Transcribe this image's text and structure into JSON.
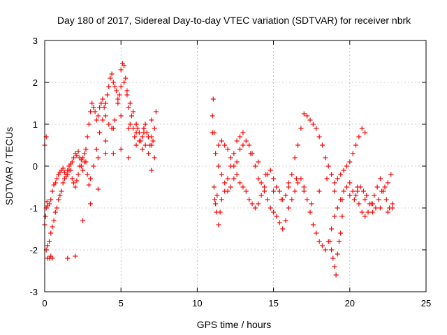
{
  "chart_data": {
    "type": "scatter",
    "title": "Day 180 of 2017, Sidereal Day-to-day VTEC variation (SDTVAR) for receiver nbrk",
    "xlabel": "GPS time / hours",
    "ylabel": "SDTVAR / TECUs",
    "xlim": [
      0,
      25
    ],
    "ylim": [
      -3,
      3
    ],
    "xticks": [
      "0",
      "5",
      "10",
      "15",
      "20",
      "25"
    ],
    "yticks": [
      "-3",
      "-2",
      "-1",
      "0",
      "1",
      "2",
      "3"
    ],
    "grid": true,
    "marker": "+",
    "series": [
      {
        "name": "SDTVAR",
        "color": "#ff0000",
        "x": [
          0.0,
          0.05,
          0.1,
          0.15,
          0.2,
          0.3,
          0.4,
          0.5,
          0.6,
          0.7,
          0.8,
          0.9,
          1.0,
          1.1,
          1.2,
          1.3,
          1.4,
          1.5,
          1.6,
          1.7,
          1.8,
          1.9,
          2.0,
          2.1,
          2.2,
          2.3,
          2.4,
          2.5,
          2.6,
          2.7,
          2.8,
          2.9,
          3.0,
          3.1,
          3.2,
          3.3,
          3.4,
          3.5,
          3.6,
          3.7,
          3.8,
          3.9,
          4.0,
          4.1,
          4.2,
          4.3,
          4.4,
          4.5,
          4.6,
          4.7,
          4.8,
          4.9,
          5.0,
          5.1,
          5.2,
          5.3,
          5.4,
          5.5,
          5.6,
          5.7,
          5.8,
          5.9,
          6.0,
          6.1,
          6.2,
          6.3,
          6.4,
          6.5,
          6.6,
          6.7,
          6.8,
          6.9,
          7.0,
          7.1,
          7.2,
          7.3,
          0.1,
          0.2,
          0.3,
          0.4,
          0.5,
          0.6,
          0.7,
          0.8,
          0.9,
          1.0,
          1.1,
          1.2,
          1.3,
          1.4,
          1.5,
          1.6,
          1.7,
          1.8,
          1.9,
          2.0,
          2.1,
          2.2,
          2.3,
          2.4,
          2.5,
          2.6,
          2.7,
          2.8,
          2.9,
          3.0,
          3.2,
          3.4,
          3.6,
          3.8,
          4.0,
          4.2,
          4.4,
          4.6,
          4.8,
          5.0,
          5.2,
          5.4,
          5.6,
          5.8,
          6.0,
          6.2,
          6.4,
          6.6,
          6.8,
          7.0,
          7.2,
          0.0,
          0.1,
          0.2,
          0.3,
          0.4,
          0.5,
          1.5,
          2.0,
          2.5,
          3.0,
          3.5,
          4.0,
          4.5,
          5.0,
          5.5,
          6.0,
          6.5,
          7.0,
          3.5,
          4.0,
          4.5,
          5.0,
          5.5,
          6.0,
          6.5,
          7.0,
          11.0,
          11.0,
          11.05,
          11.1,
          11.1,
          11.15,
          11.2,
          11.25,
          11.3,
          11.4,
          11.5,
          11.6,
          11.8,
          12.0,
          12.2,
          12.4,
          12.6,
          12.8,
          13.0,
          13.2,
          13.4,
          13.6,
          13.8,
          14.0,
          14.2,
          14.4,
          14.6,
          14.8,
          15.0,
          15.2,
          15.4,
          15.6,
          15.8,
          16.0,
          16.2,
          16.4,
          16.6,
          16.8,
          17.0,
          17.2,
          17.4,
          17.6,
          17.8,
          18.0,
          18.2,
          18.4,
          18.6,
          18.8,
          19.0,
          19.2,
          19.4,
          19.6,
          19.8,
          20.0,
          20.2,
          20.4,
          20.6,
          20.8,
          21.0,
          21.2,
          21.4,
          21.6,
          21.8,
          22.0,
          22.2,
          22.4,
          22.6,
          22.8,
          11.2,
          11.4,
          11.6,
          11.8,
          12.0,
          12.2,
          12.4,
          12.6,
          12.8,
          13.0,
          13.2,
          13.4,
          13.6,
          13.8,
          14.0,
          14.2,
          14.4,
          14.6,
          14.8,
          15.0,
          15.2,
          15.4,
          15.6,
          15.8,
          16.0,
          16.2,
          16.4,
          16.6,
          16.8,
          17.0,
          17.2,
          17.4,
          17.6,
          17.8,
          18.0,
          18.2,
          18.4,
          18.6,
          18.8,
          19.0,
          19.2,
          19.4,
          19.6,
          19.8,
          20.0,
          20.2,
          20.4,
          20.6,
          20.8,
          21.0,
          11.4,
          11.6,
          11.8,
          12.0,
          12.2,
          12.4,
          12.6,
          12.8,
          13.0,
          13.5,
          14.0,
          14.5,
          15.0,
          15.5,
          16.0,
          16.5,
          17.0,
          17.5,
          18.0,
          18.5,
          19.0,
          19.5,
          20.0,
          20.5,
          21.0,
          21.5,
          22.0,
          22.5,
          22.8,
          18.7,
          18.8,
          18.9,
          19.0,
          19.1,
          19.2,
          19.3,
          19.4,
          19.5,
          20.3,
          20.5,
          20.7,
          20.9,
          21.1,
          21.3,
          21.5,
          21.7,
          21.9,
          22.1,
          22.3,
          22.5,
          22.7
        ],
        "y": [
          -1.4,
          -1.2,
          -1.0,
          -0.85,
          -0.95,
          -0.9,
          -0.8,
          -0.6,
          -0.45,
          -0.4,
          -0.3,
          -0.2,
          -0.15,
          -0.1,
          -0.05,
          -0.15,
          -0.25,
          -0.2,
          -0.1,
          0.05,
          0.1,
          0.2,
          0.3,
          0.25,
          0.35,
          0.2,
          0.0,
          -0.1,
          0.1,
          0.4,
          0.7,
          1.0,
          1.3,
          1.5,
          1.4,
          1.3,
          1.1,
          1.2,
          1.4,
          1.5,
          1.6,
          1.4,
          1.5,
          1.7,
          1.9,
          2.1,
          2.2,
          2.0,
          1.9,
          1.8,
          1.6,
          1.7,
          2.3,
          2.45,
          2.4,
          2.1,
          1.8,
          1.4,
          1.0,
          1.2,
          0.9,
          0.7,
          0.8,
          0.9,
          0.8,
          0.6,
          0.7,
          0.9,
          1.0,
          0.8,
          0.7,
          0.5,
          0.7,
          0.6,
          0.9,
          1.3,
          -2.0,
          -1.9,
          -1.8,
          -1.6,
          -1.45,
          -1.3,
          -1.1,
          -1.0,
          -0.8,
          -0.7,
          -0.6,
          -0.4,
          -0.3,
          -0.2,
          -0.1,
          0.0,
          -0.1,
          -0.3,
          -0.4,
          -0.5,
          -0.35,
          -0.2,
          0.0,
          0.15,
          0.2,
          0.3,
          0.1,
          -0.2,
          -0.45,
          -0.3,
          0.0,
          0.4,
          0.8,
          1.1,
          1.2,
          1.0,
          0.9,
          1.1,
          1.5,
          1.9,
          2.0,
          1.7,
          1.5,
          1.3,
          1.0,
          0.6,
          0.4,
          0.5,
          0.3,
          -0.1,
          0.2,
          0.5,
          0.7,
          -2.2,
          -2.2,
          -2.15,
          -2.2,
          -2.2,
          -2.15,
          -1.3,
          -0.9,
          -0.55,
          0.3,
          0.9,
          1.2,
          0.9,
          1.0,
          0.8,
          0.5,
          0.2,
          0.6,
          0.3,
          0.4,
          0.2,
          0.5,
          0.9,
          1.1,
          0.8,
          1.2,
          1.6,
          0.8,
          -0.5,
          -0.8,
          -0.9,
          -1.1,
          -0.7,
          -1.4,
          -1.1,
          -0.8,
          -0.6,
          -0.3,
          0.0,
          0.3,
          0.6,
          0.7,
          0.8,
          0.6,
          0.5,
          0.3,
          0.0,
          -0.3,
          -0.4,
          -0.6,
          -0.8,
          -1.0,
          -1.1,
          -1.2,
          -1.35,
          -1.5,
          -1.3,
          -1.0,
          -0.8,
          -0.6,
          -0.4,
          -0.3,
          -0.5,
          -0.8,
          -1.1,
          -1.4,
          -1.6,
          -1.8,
          -1.9,
          -2.0,
          -1.8,
          -1.5,
          -1.2,
          -1.0,
          -0.8,
          -0.6,
          -0.5,
          -0.4,
          -0.6,
          -0.7,
          -0.9,
          -1.1,
          -1.2,
          -1.1,
          -0.9,
          -0.7,
          -0.5,
          -0.3,
          -0.6,
          -0.8,
          -1.0,
          -1.0,
          0.3,
          0.5,
          0.6,
          0.5,
          0.4,
          0.2,
          0.0,
          -0.2,
          -0.4,
          -0.5,
          -0.6,
          -0.8,
          -0.9,
          -1.0,
          -0.9,
          -0.7,
          -0.5,
          -0.2,
          -0.1,
          -0.3,
          -0.5,
          -0.6,
          -0.8,
          -0.7,
          -0.5,
          -0.2,
          0.2,
          0.5,
          0.9,
          1.25,
          1.2,
          1.1,
          1.0,
          0.9,
          0.7,
          0.5,
          0.2,
          0.0,
          -0.2,
          -0.4,
          -0.3,
          -0.2,
          -0.1,
          0.0,
          0.1,
          0.3,
          0.5,
          0.7,
          0.9,
          0.8,
          0.0,
          -0.2,
          -0.4,
          -0.6,
          -0.5,
          -0.3,
          0.1,
          0.4,
          0.5,
          0.3,
          0.1,
          -0.2,
          -0.6,
          -0.8,
          -0.4,
          -0.3,
          -0.6,
          -0.9,
          -0.6,
          -0.3,
          -0.6,
          -0.8,
          -0.7,
          -0.6,
          -0.8,
          -0.9,
          -1.0,
          -1.1,
          -0.9,
          -1.8,
          -2.0,
          -2.2,
          -2.4,
          -2.6,
          -2.1,
          -1.8,
          -1.6,
          -1.2,
          -0.8,
          -0.5,
          -0.5,
          -0.6,
          -0.7,
          -0.9,
          -1.1,
          -1.0,
          -0.8,
          -0.6,
          -0.5,
          -0.4,
          -0.2
        ]
      }
    ]
  }
}
